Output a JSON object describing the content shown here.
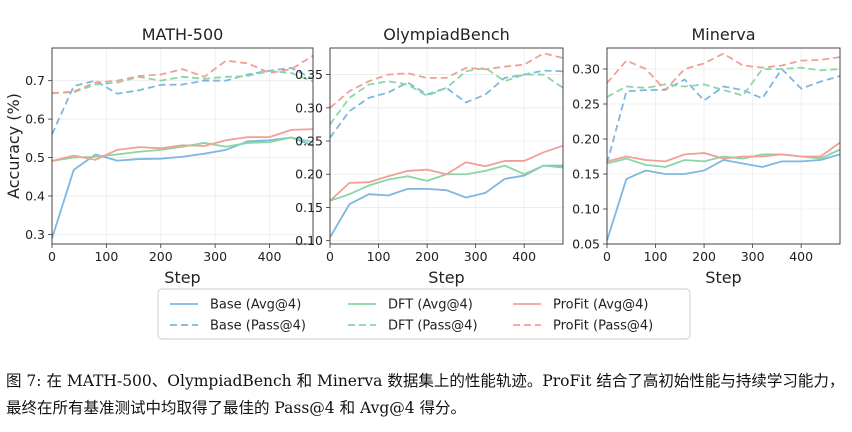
{
  "figure": {
    "ylabel": "Accuracy (%)",
    "xlabel": "Step",
    "colors": {
      "base": "#7eb8e0",
      "dft": "#8ad6a4",
      "profit": "#f0a096"
    }
  },
  "legend": {
    "items": [
      {
        "label": "Base (Avg@4)",
        "series": "base",
        "style": "solid"
      },
      {
        "label": "Base (Pass@4)",
        "series": "base",
        "style": "dashed"
      },
      {
        "label": "DFT (Avg@4)",
        "series": "dft",
        "style": "solid"
      },
      {
        "label": "DFT (Pass@4)",
        "series": "dft",
        "style": "dashed"
      },
      {
        "label": "ProFit (Avg@4)",
        "series": "profit",
        "style": "solid"
      },
      {
        "label": "ProFit (Pass@4)",
        "series": "profit",
        "style": "dashed"
      }
    ]
  },
  "chart_data": [
    {
      "type": "line",
      "title": "MATH-500",
      "xlabel": "Step",
      "ylabel": "Accuracy (%)",
      "xlim": [
        0,
        480
      ],
      "ylim": [
        0.275,
        0.785
      ],
      "xticks": [
        0,
        100,
        200,
        300,
        400
      ],
      "yticks": [
        0.3,
        0.4,
        0.5,
        0.6,
        0.7
      ],
      "x": [
        0,
        40,
        80,
        120,
        160,
        200,
        240,
        280,
        320,
        360,
        400,
        440,
        480
      ],
      "series": [
        {
          "name": "Base (Avg@4)",
          "values": [
            0.29,
            0.468,
            0.508,
            0.492,
            0.496,
            0.497,
            0.502,
            0.51,
            0.52,
            0.542,
            0.545,
            0.552,
            0.531
          ]
        },
        {
          "name": "Base (Pass@4)",
          "values": [
            0.56,
            0.686,
            0.7,
            0.666,
            0.675,
            0.689,
            0.69,
            0.7,
            0.7,
            0.716,
            0.726,
            0.733,
            0.705
          ]
        },
        {
          "name": "DFT (Avg@4)",
          "values": [
            0.491,
            0.5,
            0.502,
            0.508,
            0.515,
            0.52,
            0.528,
            0.538,
            0.528,
            0.538,
            0.54,
            0.552,
            0.54
          ]
        },
        {
          "name": "DFT (Pass@4)",
          "values": [
            0.668,
            0.67,
            0.69,
            0.695,
            0.71,
            0.7,
            0.71,
            0.705,
            0.71,
            0.712,
            0.725,
            0.72,
            0.698
          ]
        },
        {
          "name": "ProFit (Avg@4)",
          "values": [
            0.491,
            0.505,
            0.494,
            0.52,
            0.527,
            0.524,
            0.532,
            0.53,
            0.545,
            0.553,
            0.553,
            0.572,
            0.574
          ]
        },
        {
          "name": "ProFit (Pass@4)",
          "values": [
            0.667,
            0.672,
            0.695,
            0.7,
            0.712,
            0.716,
            0.73,
            0.71,
            0.752,
            0.745,
            0.72,
            0.73,
            0.765
          ]
        }
      ]
    },
    {
      "type": "line",
      "title": "OlympiadBench",
      "xlabel": "Step",
      "ylabel": "",
      "xlim": [
        0,
        480
      ],
      "ylim": [
        0.095,
        0.39
      ],
      "xticks": [
        0,
        100,
        200,
        300,
        400
      ],
      "yticks": [
        0.1,
        0.15,
        0.2,
        0.25,
        0.3,
        0.35
      ],
      "x": [
        0,
        40,
        80,
        120,
        160,
        200,
        240,
        280,
        320,
        360,
        400,
        440,
        480
      ],
      "series": [
        {
          "name": "Base (Avg@4)",
          "values": [
            0.105,
            0.155,
            0.17,
            0.168,
            0.178,
            0.178,
            0.176,
            0.165,
            0.172,
            0.193,
            0.198,
            0.213,
            0.213
          ]
        },
        {
          "name": "Base (Pass@4)",
          "values": [
            0.255,
            0.295,
            0.315,
            0.323,
            0.338,
            0.32,
            0.33,
            0.308,
            0.32,
            0.345,
            0.35,
            0.356,
            0.355
          ]
        },
        {
          "name": "DFT (Avg@4)",
          "values": [
            0.16,
            0.17,
            0.183,
            0.192,
            0.197,
            0.19,
            0.2,
            0.2,
            0.205,
            0.213,
            0.2,
            0.213,
            0.21
          ]
        },
        {
          "name": "DFT (Pass@4)",
          "values": [
            0.275,
            0.315,
            0.335,
            0.34,
            0.335,
            0.318,
            0.33,
            0.355,
            0.36,
            0.34,
            0.35,
            0.35,
            0.33
          ]
        },
        {
          "name": "ProFit (Avg@4)",
          "values": [
            0.16,
            0.187,
            0.188,
            0.197,
            0.205,
            0.207,
            0.2,
            0.218,
            0.212,
            0.22,
            0.22,
            0.233,
            0.243
          ]
        },
        {
          "name": "ProFit (Pass@4)",
          "values": [
            0.3,
            0.325,
            0.34,
            0.35,
            0.352,
            0.345,
            0.345,
            0.36,
            0.358,
            0.362,
            0.365,
            0.382,
            0.375
          ]
        }
      ]
    },
    {
      "type": "line",
      "title": "Minerva",
      "xlabel": "Step",
      "ylabel": "",
      "xlim": [
        0,
        480
      ],
      "ylim": [
        0.05,
        0.33
      ],
      "xticks": [
        0,
        100,
        200,
        300,
        400
      ],
      "yticks": [
        0.05,
        0.1,
        0.15,
        0.2,
        0.25,
        0.3
      ],
      "x": [
        0,
        40,
        80,
        120,
        160,
        200,
        240,
        280,
        320,
        360,
        400,
        440,
        480
      ],
      "series": [
        {
          "name": "Base (Avg@4)",
          "values": [
            0.055,
            0.143,
            0.155,
            0.15,
            0.15,
            0.155,
            0.17,
            0.165,
            0.16,
            0.168,
            0.168,
            0.17,
            0.178
          ]
        },
        {
          "name": "Base (Pass@4)",
          "values": [
            0.165,
            0.268,
            0.27,
            0.27,
            0.285,
            0.255,
            0.275,
            0.27,
            0.258,
            0.3,
            0.272,
            0.282,
            0.29
          ]
        },
        {
          "name": "DFT (Avg@4)",
          "values": [
            0.165,
            0.172,
            0.163,
            0.16,
            0.17,
            0.168,
            0.175,
            0.172,
            0.178,
            0.178,
            0.175,
            0.172,
            0.185
          ]
        },
        {
          "name": "DFT (Pass@4)",
          "values": [
            0.26,
            0.275,
            0.273,
            0.278,
            0.275,
            0.278,
            0.27,
            0.262,
            0.3,
            0.3,
            0.302,
            0.298,
            0.3
          ]
        },
        {
          "name": "ProFit (Avg@4)",
          "values": [
            0.168,
            0.175,
            0.17,
            0.168,
            0.178,
            0.18,
            0.172,
            0.175,
            0.175,
            0.178,
            0.175,
            0.175,
            0.195
          ]
        },
        {
          "name": "ProFit (Pass@4)",
          "values": [
            0.28,
            0.312,
            0.3,
            0.27,
            0.3,
            0.308,
            0.322,
            0.305,
            0.302,
            0.305,
            0.312,
            0.313,
            0.317
          ]
        }
      ]
    }
  ],
  "caption": {
    "label": "图 7:",
    "text": "在 MATH-500、OlympiadBench 和 Minerva 数据集上的性能轨迹。ProFit 结合了高初始性能与持续学习能力，最终在所有基准测试中均取得了最佳的 Pass@4 和 Avg@4 得分。"
  }
}
